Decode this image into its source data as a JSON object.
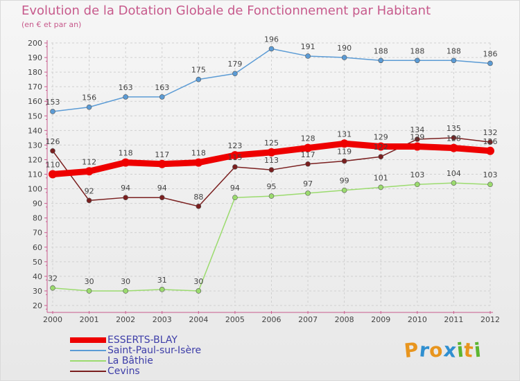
{
  "title": "Evolution de la Dotation Globale de Fonctionnement par Habitant",
  "subtitle": "(en € et par an)",
  "logo": {
    "text": "Proxiti",
    "letters": [
      "P",
      "r",
      "o",
      "x",
      "i",
      "t",
      "i"
    ],
    "colors": [
      "#e8951e",
      "#2f8fd0",
      "#e8951e",
      "#2f8fd0",
      "#5cb531",
      "#e8951e",
      "#5cb531"
    ]
  },
  "chart_data": {
    "type": "line",
    "title": "Evolution de la Dotation Globale de Fonctionnement par Habitant",
    "subtitle": "(en € et par an)",
    "x": [
      2000,
      2001,
      2002,
      2003,
      2004,
      2005,
      2006,
      2007,
      2008,
      2009,
      2010,
      2011,
      2012
    ],
    "ylim": [
      20,
      200
    ],
    "yticks": [
      20,
      30,
      40,
      50,
      60,
      70,
      80,
      90,
      100,
      110,
      120,
      130,
      140,
      150,
      160,
      170,
      180,
      190,
      200
    ],
    "xlabel": "",
    "ylabel": "",
    "grid": true,
    "legend_position": "bottom-left",
    "series": [
      {
        "name": "ESSERTS-BLAY",
        "color": "#ee0000",
        "emphasis": true,
        "values": [
          110,
          112,
          118,
          117,
          118,
          123,
          125,
          128,
          131,
          129,
          129,
          128,
          126
        ]
      },
      {
        "name": "Saint-Paul-sur-Isère",
        "color": "#5b9bd5",
        "emphasis": false,
        "values": [
          153,
          156,
          163,
          163,
          175,
          179,
          196,
          191,
          190,
          188,
          188,
          188,
          186
        ]
      },
      {
        "name": "La Bâthie",
        "color": "#9bdb6e",
        "emphasis": false,
        "values": [
          32,
          30,
          30,
          31,
          30,
          94,
          95,
          97,
          99,
          101,
          103,
          104,
          103
        ]
      },
      {
        "name": "Cevins",
        "color": "#7a1f1f",
        "emphasis": false,
        "values": [
          126,
          92,
          94,
          94,
          88,
          115,
          113,
          117,
          119,
          122,
          134,
          135,
          132
        ]
      }
    ]
  }
}
